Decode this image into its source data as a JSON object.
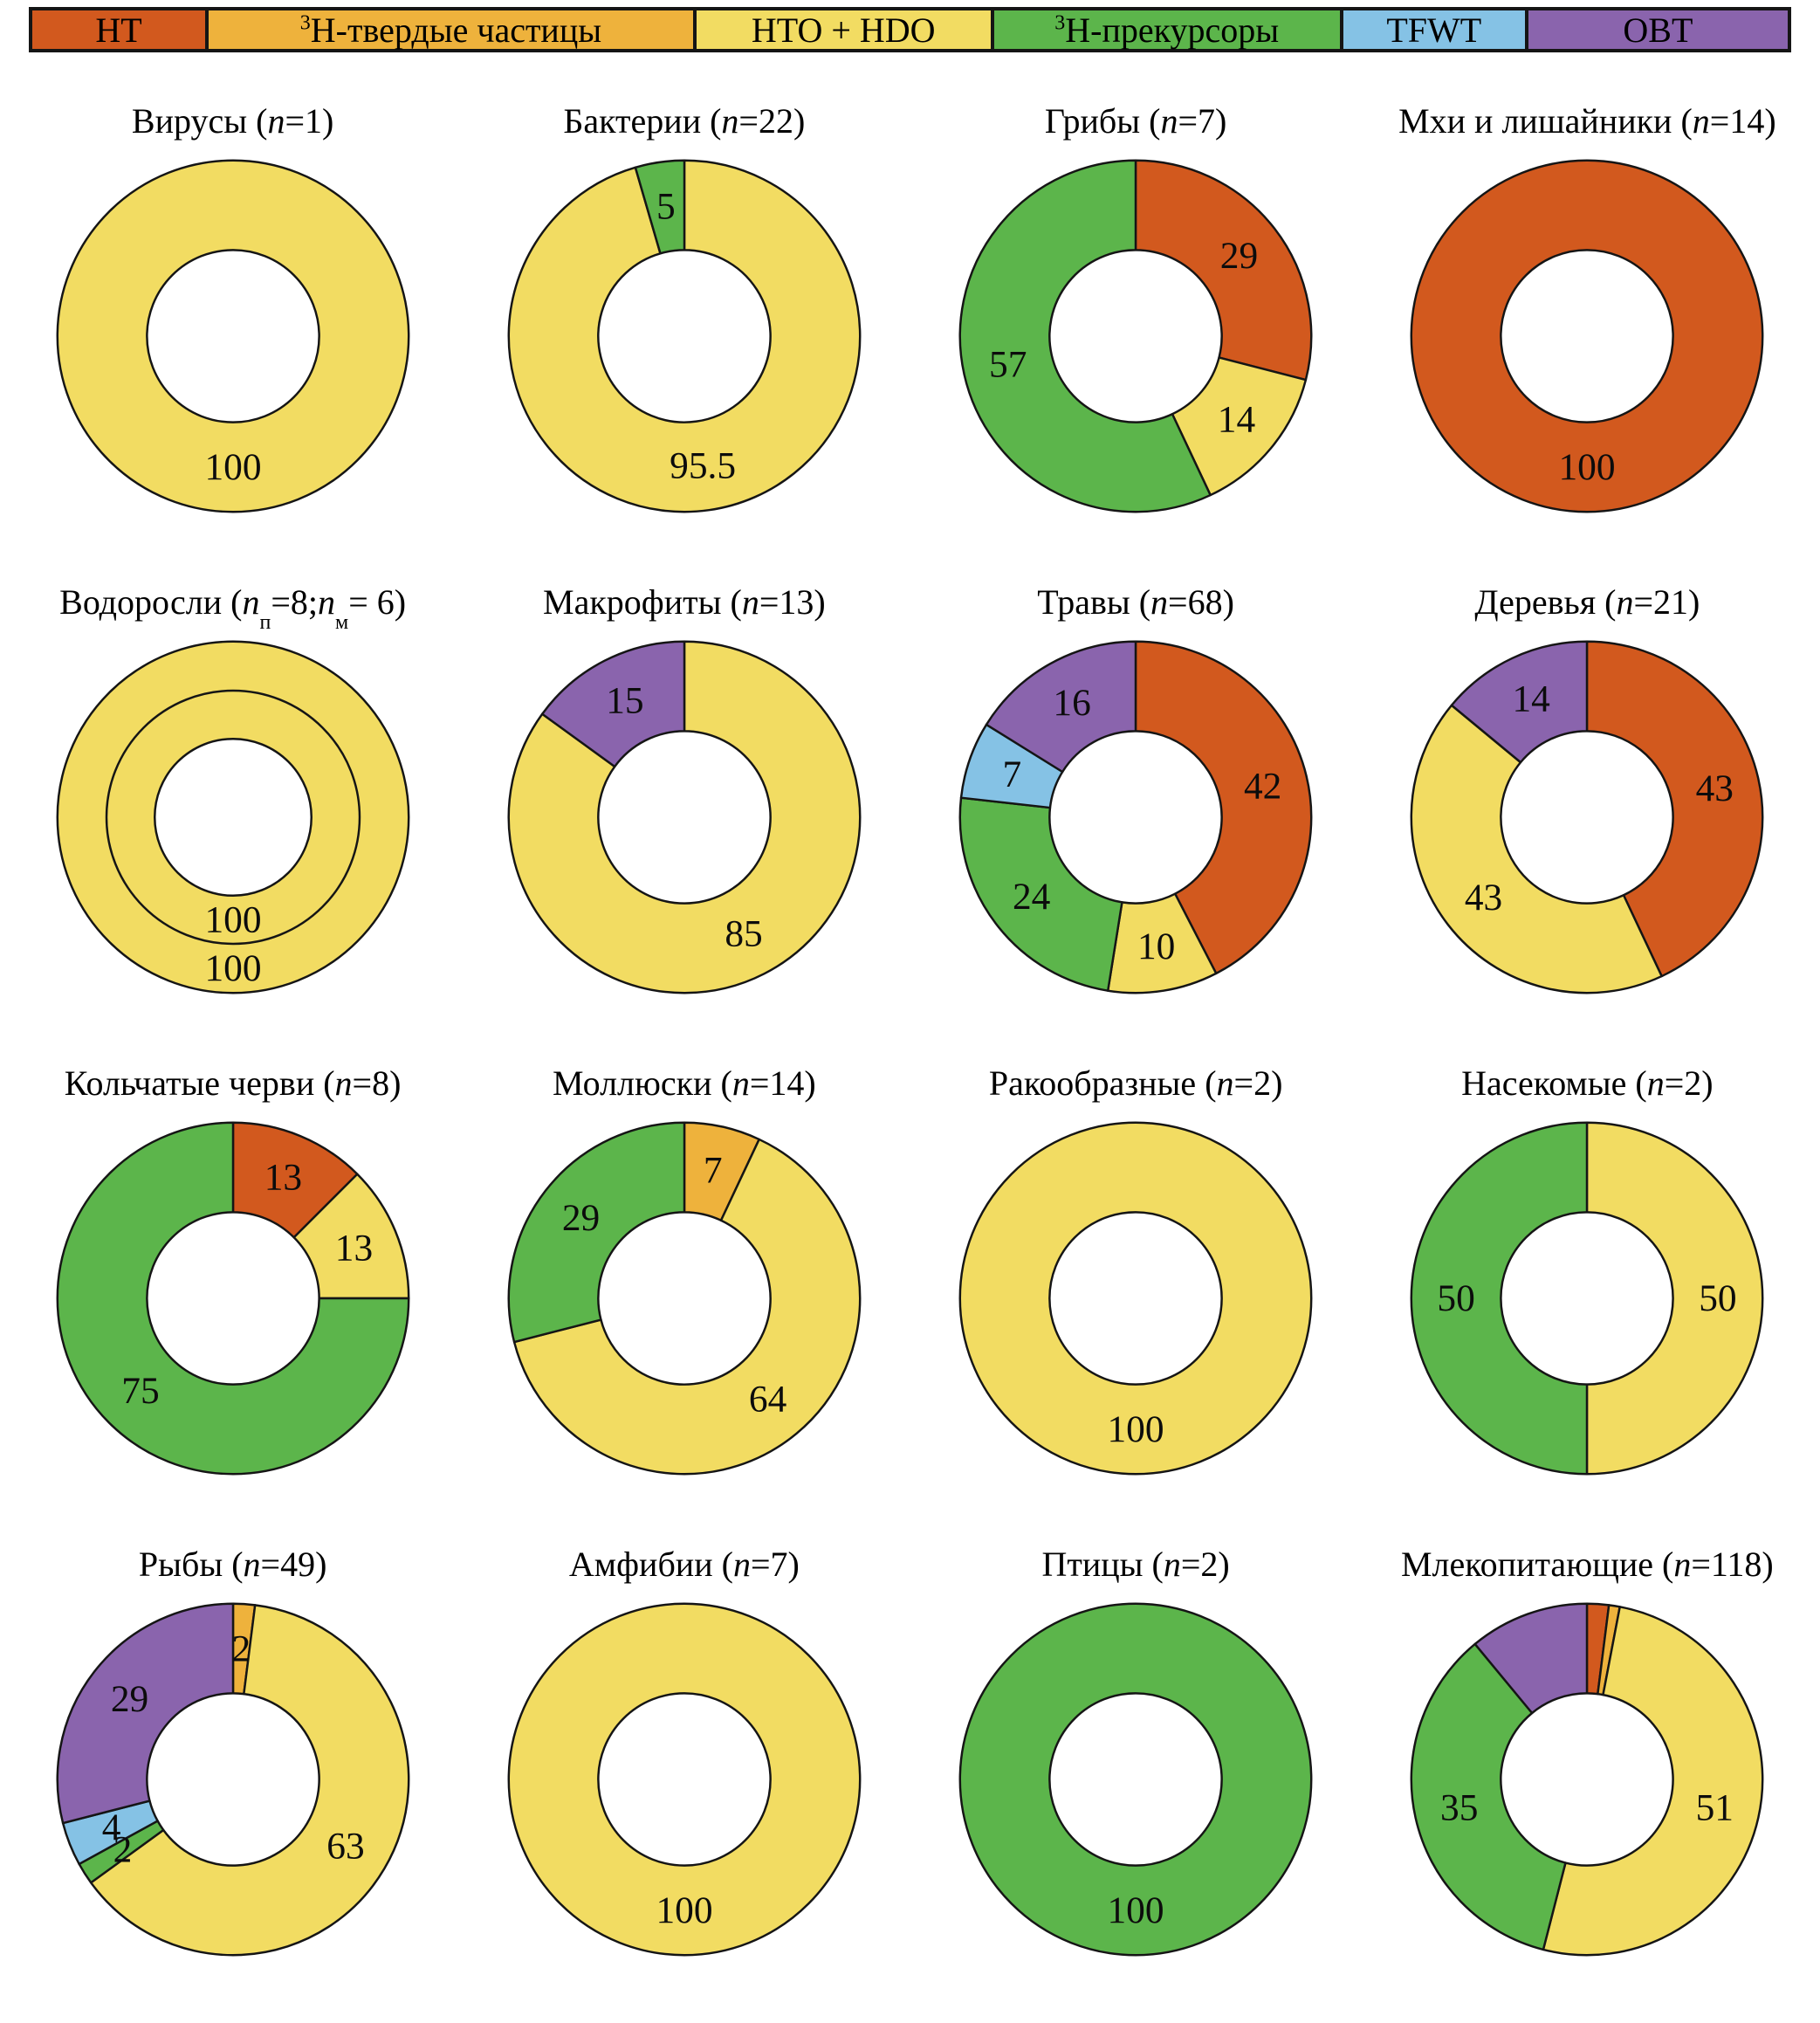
{
  "palette": {
    "HT": "#d2591e",
    "HTP": "#eeb23c",
    "HTO": "#f2dc62",
    "PREC": "#5cb54b",
    "TFWT": "#85c2e5",
    "OBT": "#8a64ad",
    "stroke": "#151515",
    "hole": "#ffffff"
  },
  "legend": {
    "items": [
      {
        "key": "HT",
        "flex": 200,
        "color": "#d2591e",
        "label": [
          {
            "t": "HT"
          }
        ],
        "label_text": "HT"
      },
      {
        "key": "HTP",
        "flex": 560,
        "color": "#eeb23c",
        "label": [
          {
            "t": "3",
            "style": "sup"
          },
          {
            "t": "H-твердые частицы"
          }
        ],
        "label_text": "³H-твердые частицы"
      },
      {
        "key": "HTO",
        "flex": 340,
        "color": "#f2dc62",
        "label": [
          {
            "t": "HTO + HDO"
          }
        ],
        "label_text": "HTO + HDO"
      },
      {
        "key": "PREC",
        "flex": 400,
        "color": "#5cb54b",
        "label": [
          {
            "t": "3",
            "style": "sup"
          },
          {
            "t": "H-прекурсоры"
          }
        ],
        "label_text": "³H-прекурсоры"
      },
      {
        "key": "TFWT",
        "flex": 210,
        "color": "#85c2e5",
        "label": [
          {
            "t": "TFWT"
          }
        ],
        "label_text": "TFWT"
      },
      {
        "key": "OBT",
        "flex": 300,
        "color": "#8a64ad",
        "label": [
          {
            "t": "OBT"
          }
        ],
        "label_text": "OBT"
      }
    ]
  },
  "chart_data": [
    {
      "type": "donut",
      "title_text": "Вирусы (n=1)",
      "title": [
        {
          "t": "Вирусы ("
        },
        {
          "t": "n",
          "style": "i"
        },
        {
          "t": "=1)"
        }
      ],
      "rings": [
        {
          "outer": 204,
          "inner": 100,
          "segments": [
            {
              "key": "HTO",
              "value": 100,
              "label": "100"
            }
          ]
        }
      ]
    },
    {
      "type": "donut",
      "title_text": "Бактерии (n=22)",
      "title": [
        {
          "t": "Бактерии ("
        },
        {
          "t": "n",
          "style": "i"
        },
        {
          "t": "=22)"
        }
      ],
      "rings": [
        {
          "outer": 204,
          "inner": 100,
          "segments": [
            {
              "key": "HTO",
              "value": 95.5,
              "label": "95.5"
            },
            {
              "key": "PREC",
              "value": 4.5,
              "label": "5"
            }
          ]
        }
      ]
    },
    {
      "type": "donut",
      "title_text": "Грибы (n=7)",
      "title": [
        {
          "t": "Грибы ("
        },
        {
          "t": "n",
          "style": "i"
        },
        {
          "t": "=7)"
        }
      ],
      "rings": [
        {
          "outer": 204,
          "inner": 100,
          "segments": [
            {
              "key": "HT",
              "value": 29,
              "label": "29"
            },
            {
              "key": "HTO",
              "value": 14,
              "label": "14"
            },
            {
              "key": "PREC",
              "value": 57,
              "label": "57"
            }
          ]
        }
      ]
    },
    {
      "type": "donut",
      "title_text": "Мхи и лишайники (n=14)",
      "title": [
        {
          "t": "Мхи и лишайники ("
        },
        {
          "t": "n",
          "style": "i"
        },
        {
          "t": "=14)"
        }
      ],
      "rings": [
        {
          "outer": 204,
          "inner": 100,
          "segments": [
            {
              "key": "HT",
              "value": 100,
              "label": "100"
            }
          ]
        }
      ]
    },
    {
      "type": "donut",
      "title_text": "Водоросли (nп=8; nм= 6)",
      "title": [
        {
          "t": "Водоросли ("
        },
        {
          "t": "n",
          "style": "i"
        },
        {
          "t": "п",
          "style": "sub"
        },
        {
          "t": "=8; "
        },
        {
          "t": "n",
          "style": "i"
        },
        {
          "t": "м",
          "style": "sub"
        },
        {
          "t": "= 6)"
        }
      ],
      "rings": [
        {
          "outer": 204,
          "inner": 147,
          "segments": [
            {
              "key": "HTO",
              "value": 100,
              "label": "100"
            }
          ]
        },
        {
          "outer": 147,
          "inner": 91,
          "segments": [
            {
              "key": "HTO",
              "value": 100,
              "label": "100"
            }
          ]
        }
      ]
    },
    {
      "type": "donut",
      "title_text": "Макрофиты (n=13)",
      "title": [
        {
          "t": "Макрофиты ("
        },
        {
          "t": "n",
          "style": "i"
        },
        {
          "t": "=13)"
        }
      ],
      "rings": [
        {
          "outer": 204,
          "inner": 100,
          "segments": [
            {
              "key": "HTO",
              "value": 85,
              "label": "85"
            },
            {
              "key": "OBT",
              "value": 15,
              "label": "15"
            }
          ]
        }
      ]
    },
    {
      "type": "donut",
      "title_text": "Травы (n=68)",
      "title": [
        {
          "t": "Травы ("
        },
        {
          "t": "n",
          "style": "i"
        },
        {
          "t": "=68)"
        }
      ],
      "rings": [
        {
          "outer": 204,
          "inner": 100,
          "segments": [
            {
              "key": "HT",
              "value": 42,
              "label": "42"
            },
            {
              "key": "HTO",
              "value": 10,
              "label": "10"
            },
            {
              "key": "PREC",
              "value": 24,
              "label": "24"
            },
            {
              "key": "TFWT",
              "value": 7,
              "label": "7"
            },
            {
              "key": "OBT",
              "value": 16,
              "label": "16"
            }
          ]
        }
      ]
    },
    {
      "type": "donut",
      "title_text": "Деревья (n=21)",
      "title": [
        {
          "t": "Деревья ("
        },
        {
          "t": "n",
          "style": "i"
        },
        {
          "t": "=21)"
        }
      ],
      "rings": [
        {
          "outer": 204,
          "inner": 100,
          "segments": [
            {
              "key": "HT",
              "value": 43,
              "label": "43"
            },
            {
              "key": "HTO",
              "value": 43,
              "label": "43"
            },
            {
              "key": "OBT",
              "value": 14,
              "label": "14"
            }
          ]
        }
      ]
    },
    {
      "type": "donut",
      "title_text": "Кольчатые черви (n=8)",
      "title": [
        {
          "t": "Кольчатые черви ("
        },
        {
          "t": "n",
          "style": "i"
        },
        {
          "t": "=8)"
        }
      ],
      "rings": [
        {
          "outer": 204,
          "inner": 100,
          "segments": [
            {
              "key": "HT",
              "value": 12.5,
              "label": "13"
            },
            {
              "key": "HTO",
              "value": 12.5,
              "label": "13"
            },
            {
              "key": "PREC",
              "value": 75,
              "label": "75"
            }
          ]
        }
      ]
    },
    {
      "type": "donut",
      "title_text": "Моллюски (n=14)",
      "title": [
        {
          "t": "Моллюски ("
        },
        {
          "t": "n",
          "style": "i"
        },
        {
          "t": "=14)"
        }
      ],
      "rings": [
        {
          "outer": 204,
          "inner": 100,
          "segments": [
            {
              "key": "HTP",
              "value": 7,
              "label": "7"
            },
            {
              "key": "HTO",
              "value": 64,
              "label": "64"
            },
            {
              "key": "PREC",
              "value": 29,
              "label": "29"
            }
          ]
        }
      ]
    },
    {
      "type": "donut",
      "title_text": "Ракообразные (n=2)",
      "title": [
        {
          "t": "Ракообразные ("
        },
        {
          "t": "n",
          "style": "i"
        },
        {
          "t": "=2)"
        }
      ],
      "rings": [
        {
          "outer": 204,
          "inner": 100,
          "segments": [
            {
              "key": "HTO",
              "value": 100,
              "label": "100"
            }
          ]
        }
      ]
    },
    {
      "type": "donut",
      "title_text": "Насекомые (n=2)",
      "title": [
        {
          "t": "Насекомые ("
        },
        {
          "t": "n",
          "style": "i"
        },
        {
          "t": "=2)"
        }
      ],
      "rings": [
        {
          "outer": 204,
          "inner": 100,
          "segments": [
            {
              "key": "HTO",
              "value": 50,
              "label": "50"
            },
            {
              "key": "PREC",
              "value": 50,
              "label": "50"
            }
          ]
        }
      ]
    },
    {
      "type": "donut",
      "title_text": "Рыбы (n=49)",
      "title": [
        {
          "t": "Рыбы ("
        },
        {
          "t": "n",
          "style": "i"
        },
        {
          "t": "=49)"
        }
      ],
      "rings": [
        {
          "outer": 204,
          "inner": 100,
          "segments": [
            {
              "key": "HTP",
              "value": 2,
              "label": "2"
            },
            {
              "key": "HTO",
              "value": 63,
              "label": "63"
            },
            {
              "key": "PREC",
              "value": 2,
              "label": "2"
            },
            {
              "key": "TFWT",
              "value": 4,
              "label": "4"
            },
            {
              "key": "OBT",
              "value": 29,
              "label": "29"
            }
          ]
        }
      ]
    },
    {
      "type": "donut",
      "title_text": "Амфибии (n=7)",
      "title": [
        {
          "t": "Амфибии ("
        },
        {
          "t": "n",
          "style": "i"
        },
        {
          "t": "=7)"
        }
      ],
      "rings": [
        {
          "outer": 204,
          "inner": 100,
          "segments": [
            {
              "key": "HTO",
              "value": 100,
              "label": "100"
            }
          ]
        }
      ]
    },
    {
      "type": "donut",
      "title_text": "Птицы (n=2)",
      "title": [
        {
          "t": "Птицы ("
        },
        {
          "t": "n",
          "style": "i"
        },
        {
          "t": "=2)"
        }
      ],
      "rings": [
        {
          "outer": 204,
          "inner": 100,
          "segments": [
            {
              "key": "PREC",
              "value": 100,
              "label": "100"
            }
          ]
        }
      ]
    },
    {
      "type": "donut",
      "title_text": "Млекопитающие (n=118)",
      "title": [
        {
          "t": "Млекопитающие ("
        },
        {
          "t": "n",
          "style": "i"
        },
        {
          "t": "=118)"
        }
      ],
      "rings": [
        {
          "outer": 204,
          "inner": 100,
          "segments": [
            {
              "key": "HT",
              "value": 2,
              "label": ""
            },
            {
              "key": "HTP",
              "value": 1,
              "label": ""
            },
            {
              "key": "HTO",
              "value": 51,
              "label": "51"
            },
            {
              "key": "PREC",
              "value": 35,
              "label": "35"
            },
            {
              "key": "OBT",
              "value": 11,
              "label": ""
            }
          ]
        }
      ]
    }
  ]
}
